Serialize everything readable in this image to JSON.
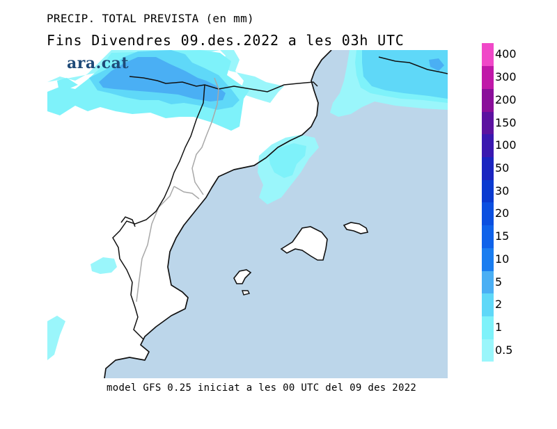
{
  "header": {
    "title_line1": "PRECIP. TOTAL PREVISTA (en mm)",
    "title_line2": "Fins Divendres 09.des.2022 a les 03h UTC"
  },
  "logo": {
    "text": "ara.cat"
  },
  "footer": {
    "text": "model GFS 0.25 iniciat a les 00 UTC del 09 des 2022"
  },
  "legend": {
    "unit": "mm",
    "levels": [
      {
        "label": "0.5",
        "color": "#9af6fb"
      },
      {
        "label": "1",
        "color": "#7ef2fa"
      },
      {
        "label": "2",
        "color": "#5fd8f8"
      },
      {
        "label": "5",
        "color": "#4aaff4"
      },
      {
        "label": "10",
        "color": "#1a7df0"
      },
      {
        "label": "15",
        "color": "#0f62ea"
      },
      {
        "label": "20",
        "color": "#0b4fe0"
      },
      {
        "label": "30",
        "color": "#0a3ad0"
      },
      {
        "label": "50",
        "color": "#1a24c0"
      },
      {
        "label": "100",
        "color": "#3a18b0"
      },
      {
        "label": "150",
        "color": "#5c12a0"
      },
      {
        "label": "200",
        "color": "#8a0f9a"
      },
      {
        "label": "300",
        "color": "#c018a8"
      },
      {
        "label": "400",
        "color": "#f048c8"
      }
    ]
  },
  "map": {
    "sea_color": "#bcd6ea",
    "land_color": "#ffffff",
    "coast_color": "#111111",
    "border_color": "#a8a8a8",
    "precip_colors": {
      "p05": "#9af6fb",
      "p1": "#7ef2fa",
      "p2": "#5fd8f8",
      "p5": "#4aaff4",
      "p10": "#1a7df0"
    }
  }
}
